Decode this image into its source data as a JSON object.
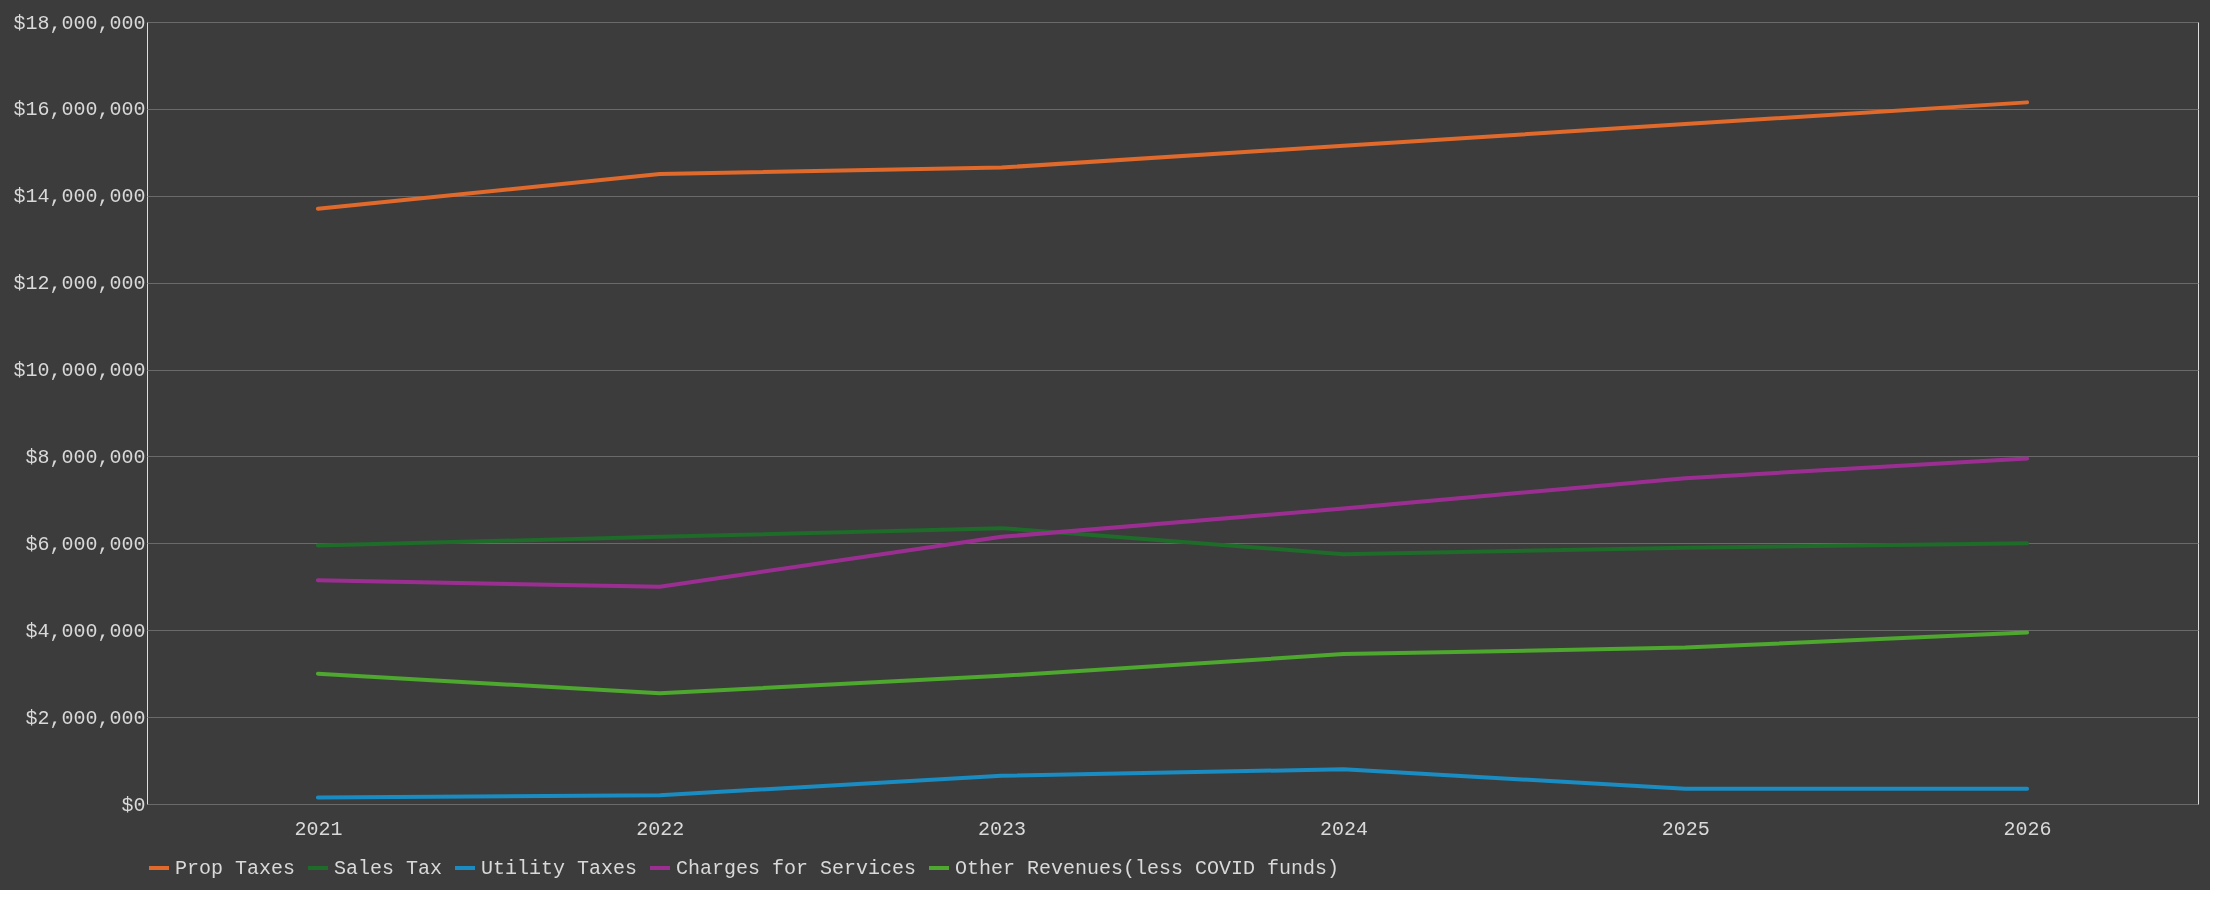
{
  "chart_data": {
    "type": "line",
    "categories": [
      "2021",
      "2022",
      "2023",
      "2024",
      "2025",
      "2026"
    ],
    "ylim": [
      0,
      18000000
    ],
    "yticks": [
      {
        "value": 0,
        "label": "$0"
      },
      {
        "value": 2000000,
        "label": "$2,000,000"
      },
      {
        "value": 4000000,
        "label": "$4,000,000"
      },
      {
        "value": 6000000,
        "label": "$6,000,000"
      },
      {
        "value": 8000000,
        "label": "$8,000,000"
      },
      {
        "value": 10000000,
        "label": "$10,000,000"
      },
      {
        "value": 12000000,
        "label": "$12,000,000"
      },
      {
        "value": 14000000,
        "label": "$14,000,000"
      },
      {
        "value": 16000000,
        "label": "$16,000,000"
      },
      {
        "value": 18000000,
        "label": "$18,000,000"
      }
    ],
    "grid": "y",
    "legend": "bottom",
    "marker": "none",
    "line_style": "solid",
    "series": [
      {
        "name": "Prop Taxes",
        "color": "#e0692c",
        "values": [
          13700000,
          14500000,
          14650000,
          15150000,
          15650000,
          16150000
        ]
      },
      {
        "name": "Sales Tax",
        "color": "#1e6b2a",
        "values": [
          5950000,
          6150000,
          6350000,
          5750000,
          5900000,
          6000000
        ]
      },
      {
        "name": "Utility Taxes",
        "color": "#1a8cc1",
        "values": [
          150000,
          200000,
          650000,
          800000,
          350000,
          350000
        ]
      },
      {
        "name": "Charges for Services",
        "color": "#9b2f91",
        "values": [
          5150000,
          5000000,
          6150000,
          6800000,
          7500000,
          7950000
        ]
      },
      {
        "name": "Other Revenues(less COVID funds)",
        "color": "#4ea72e",
        "values": [
          3000000,
          2550000,
          2950000,
          3450000,
          3600000,
          3950000
        ]
      }
    ]
  }
}
